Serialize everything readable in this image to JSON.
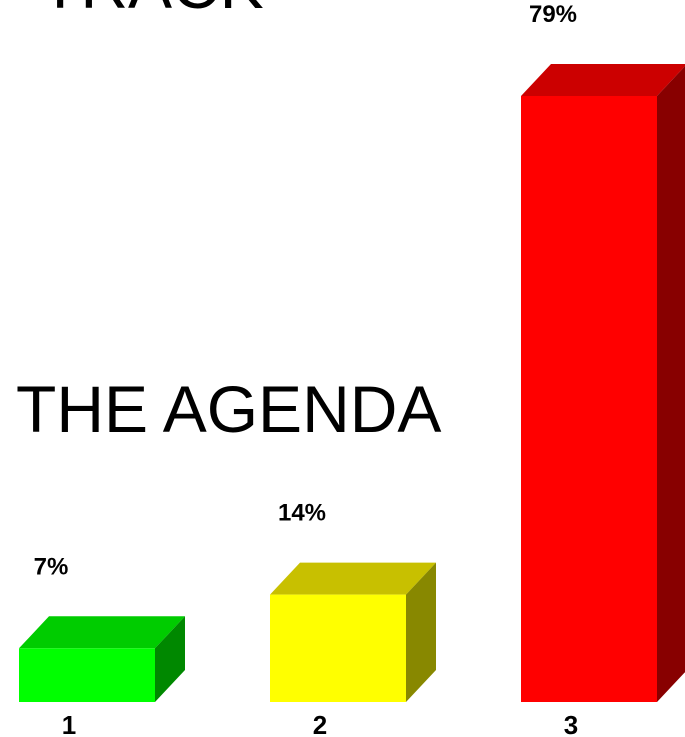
{
  "background_text": {
    "line1": "TRACK",
    "line2": "THE AGENDA"
  },
  "chart_data": {
    "type": "bar",
    "style": "3d",
    "categories": [
      "1",
      "2",
      "3"
    ],
    "values": [
      7,
      14,
      79
    ],
    "value_labels": [
      "7%",
      "14%",
      "79%"
    ],
    "ylim": [
      0,
      80
    ],
    "grid": false,
    "colors": {
      "front": [
        "#00ff00",
        "#ffff00",
        "#ff0000"
      ],
      "top": [
        "#00cc00",
        "#c8c000",
        "#cc0000"
      ],
      "side": [
        "#008800",
        "#888800",
        "#880000"
      ]
    }
  }
}
